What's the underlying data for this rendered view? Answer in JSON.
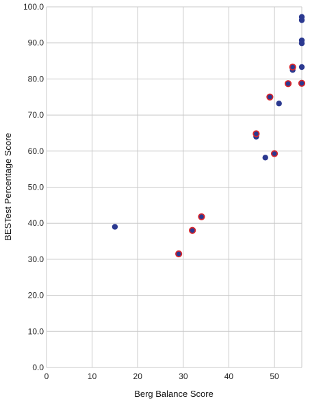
{
  "chart_data": {
    "type": "scatter",
    "title": "",
    "xlabel": "Berg Balance Score",
    "ylabel": "BESTest Percentage Score",
    "xlim": [
      0,
      56
    ],
    "ylim": [
      0,
      100
    ],
    "x_ticks": [
      0,
      10,
      20,
      30,
      40,
      50
    ],
    "x_tick_labels": [
      "0",
      "10",
      "20",
      "30",
      "40",
      "50"
    ],
    "y_ticks": [
      0,
      10,
      20,
      30,
      40,
      50,
      60,
      70,
      80,
      90,
      100
    ],
    "y_tick_labels": [
      "0.0",
      "10.0",
      "20.0",
      "30.0",
      "40.0",
      "50.0",
      "60.0",
      "70.0",
      "80.0",
      "90.0",
      "100.0"
    ],
    "grid": true,
    "legend": "none",
    "series": [
      {
        "color": "#2b3990",
        "marker": "circle-filled",
        "points": [
          [
            15,
            39
          ],
          [
            46,
            64
          ],
          [
            48,
            58.2
          ],
          [
            51,
            73.2
          ],
          [
            54,
            82.5
          ],
          [
            56,
            97.2
          ],
          [
            56,
            96.3
          ],
          [
            56,
            90.7
          ],
          [
            56,
            89.9
          ],
          [
            56,
            83.3
          ]
        ]
      },
      {
        "color": "#2b3990",
        "edge_color": "#d7262e",
        "marker": "circle-red-outline",
        "points": [
          [
            29,
            31.5
          ],
          [
            32,
            38
          ],
          [
            34,
            41.8
          ],
          [
            46,
            64.8
          ],
          [
            49,
            75
          ],
          [
            50,
            59.3
          ],
          [
            53,
            78.7
          ],
          [
            54,
            83.3
          ],
          [
            56,
            78.8
          ]
        ]
      }
    ]
  }
}
